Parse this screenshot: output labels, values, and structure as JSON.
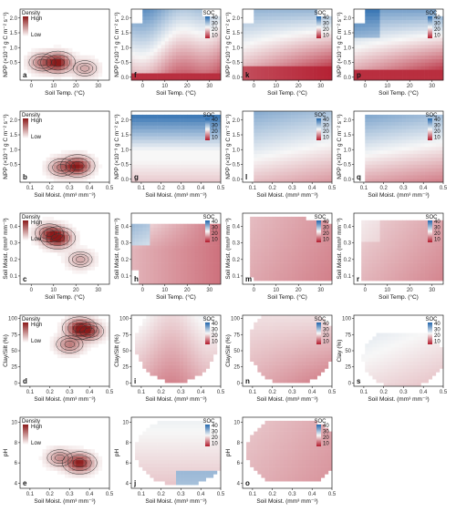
{
  "colors": {
    "density_high": "#8b1a1a",
    "soc_low": "#b2182b",
    "soc_mid": "#f7f7f7",
    "soc_high": "#2166ac",
    "contour": "#333333"
  },
  "legends": {
    "density": {
      "title": "Density",
      "high": "High",
      "low": "Low"
    },
    "soc": {
      "title": "SOC",
      "ticks": [
        "40",
        "30",
        "20",
        "10"
      ]
    }
  },
  "chart_data": [
    {
      "label": "a",
      "type": "heatmap",
      "kind": "density",
      "xlabel": "Soil Temp. (°C)",
      "ylabel": "NPP (×10⁻³ g C m⁻² s⁻¹)",
      "xticks": [
        "0",
        "10",
        "20",
        "30"
      ],
      "yticks": [
        "0.5",
        "1.0",
        "1.5",
        "2.0"
      ],
      "xlim": [
        -5,
        35
      ],
      "ylim": [
        -0.1,
        2.3
      ],
      "peaks": [
        {
          "x": 12,
          "y": 0.5,
          "w": 1.0
        },
        {
          "x": 5,
          "y": 0.5,
          "w": 0.5
        },
        {
          "x": 24,
          "y": 0.3,
          "w": 0.3
        }
      ]
    },
    {
      "label": "f",
      "type": "heatmap",
      "kind": "soc",
      "xlabel": "Soil Temp. (°C)",
      "ylabel": "NPP (×10⁻³ g C m⁻² s⁻¹)",
      "xticks": [
        "0",
        "10",
        "20",
        "30"
      ],
      "yticks": [
        "0.0",
        "0.5",
        "1.0",
        "1.5",
        "2.0"
      ],
      "xlim": [
        -5,
        35
      ],
      "ylim": [
        -0.1,
        2.3
      ],
      "legend": true
    },
    {
      "label": "k",
      "type": "heatmap",
      "kind": "soc",
      "xlabel": "Soil Temp. (°C)",
      "ylabel": "NPP (×10⁻³ g C m⁻² s⁻¹)",
      "xticks": [
        "0",
        "10",
        "20",
        "30"
      ],
      "yticks": [
        "0.0",
        "0.5",
        "1.0",
        "1.5",
        "2.0"
      ],
      "xlim": [
        -5,
        35
      ],
      "ylim": [
        -0.1,
        2.3
      ],
      "legend": true
    },
    {
      "label": "p",
      "type": "heatmap",
      "kind": "soc",
      "xlabel": "Soil Temp. (°C)",
      "ylabel": "NPP (×10⁻³ g C m⁻² s⁻¹)",
      "xticks": [
        "0",
        "10",
        "20",
        "30"
      ],
      "yticks": [
        "0.0",
        "0.5",
        "1.0",
        "1.5",
        "2.0"
      ],
      "xlim": [
        -5,
        35
      ],
      "ylim": [
        -0.1,
        2.3
      ],
      "legend": true
    },
    {
      "label": "b",
      "type": "heatmap",
      "kind": "density",
      "xlabel": "Soil Moist. (mm³ mm⁻³)",
      "ylabel": "NPP (×10⁻³ g C m⁻² s⁻¹)",
      "xticks": [
        "0.1",
        "0.2",
        "0.3",
        "0.4",
        "0.5"
      ],
      "yticks": [
        "0.5",
        "1.0",
        "1.5",
        "2.0"
      ],
      "xlim": [
        0.05,
        0.5
      ],
      "ylim": [
        -0.1,
        2.3
      ],
      "peaks": [
        {
          "x": 0.34,
          "y": 0.45,
          "w": 1.0
        },
        {
          "x": 0.26,
          "y": 0.4,
          "w": 0.5
        }
      ]
    },
    {
      "label": "g",
      "type": "heatmap",
      "kind": "soc",
      "xlabel": "Soil Moist. (mm³ mm⁻³)",
      "ylabel": "NPP (×10⁻³ g C m⁻² s⁻¹)",
      "xticks": [
        "0.1",
        "0.2",
        "0.3",
        "0.4",
        "0.5"
      ],
      "yticks": [
        "0.0",
        "0.5",
        "1.0",
        "1.5",
        "2.0"
      ],
      "xlim": [
        0.05,
        0.5
      ],
      "ylim": [
        -0.1,
        2.3
      ],
      "legend": true
    },
    {
      "label": "l",
      "type": "heatmap",
      "kind": "soc",
      "xlabel": "Soil Moist. (mm³ mm⁻³)",
      "ylabel": "NPP (×10⁻³ g C m⁻² s⁻¹)",
      "xticks": [
        "0.1",
        "0.2",
        "0.3",
        "0.4",
        "0.5"
      ],
      "yticks": [
        "0.0",
        "0.5",
        "1.0",
        "1.5",
        "2.0"
      ],
      "xlim": [
        0.05,
        0.5
      ],
      "ylim": [
        -0.1,
        2.3
      ],
      "legend": true
    },
    {
      "label": "q",
      "type": "heatmap",
      "kind": "soc",
      "xlabel": "Soil Moist. (mm³ mm⁻³)",
      "ylabel": "NPP (×10⁻³ g C m⁻² s⁻¹)",
      "xticks": [
        "0.1",
        "0.2",
        "0.3",
        "0.4",
        "0.5"
      ],
      "yticks": [
        "0.0",
        "0.5",
        "1.0",
        "1.5",
        "2.0"
      ],
      "xlim": [
        0.05,
        0.5
      ],
      "ylim": [
        -0.1,
        2.3
      ],
      "legend": true
    },
    {
      "label": "c",
      "type": "heatmap",
      "kind": "density",
      "xlabel": "Soil Temp. (°C)",
      "ylabel": "Soil Moist. (mm³ mm⁻³)",
      "xticks": [
        "0",
        "10",
        "20",
        "30"
      ],
      "yticks": [
        "0.1",
        "0.2",
        "0.3",
        "0.4"
      ],
      "xlim": [
        -5,
        35
      ],
      "ylim": [
        0.05,
        0.48
      ],
      "peaks": [
        {
          "x": 12,
          "y": 0.33,
          "w": 1.0
        },
        {
          "x": 8,
          "y": 0.36,
          "w": 0.6
        },
        {
          "x": 22,
          "y": 0.2,
          "w": 0.3
        }
      ]
    },
    {
      "label": "h",
      "type": "heatmap",
      "kind": "soc",
      "xlabel": "Soil Temp. (°C)",
      "ylabel": "Soil Moist. (mm³ mm⁻³)",
      "xticks": [
        "0",
        "10",
        "20",
        "30"
      ],
      "yticks": [
        "0.1",
        "0.2",
        "0.3",
        "0.4"
      ],
      "xlim": [
        -5,
        35
      ],
      "ylim": [
        0.05,
        0.48
      ],
      "legend": true
    },
    {
      "label": "m",
      "type": "heatmap",
      "kind": "soc",
      "xlabel": "Soil Temp. (°C)",
      "ylabel": "Soil Moist. (mm³ mm⁻³)",
      "xticks": [
        "0",
        "10",
        "20",
        "30"
      ],
      "yticks": [
        "0.1",
        "0.2",
        "0.3",
        "0.4"
      ],
      "xlim": [
        -5,
        35
      ],
      "ylim": [
        0.05,
        0.48
      ],
      "legend": true
    },
    {
      "label": "r",
      "type": "heatmap",
      "kind": "soc",
      "xlabel": "Soil Temp. (°C)",
      "ylabel": "Soil Moist. (mm³ mm⁻³)",
      "xticks": [
        "0",
        "10",
        "20",
        "30"
      ],
      "yticks": [
        "0.1",
        "0.2",
        "0.3",
        "0.4"
      ],
      "xlim": [
        -5,
        35
      ],
      "ylim": [
        0.05,
        0.48
      ],
      "legend": true
    },
    {
      "label": "d",
      "type": "heatmap",
      "kind": "density",
      "xlabel": "Soil Moist. (mm³ mm⁻³)",
      "ylabel": "Clay/Silt (%)",
      "xticks": [
        "0.1",
        "0.2",
        "0.3",
        "0.4",
        "0.5"
      ],
      "yticks": [
        "0",
        "25",
        "50",
        "75",
        "100"
      ],
      "xlim": [
        0.05,
        0.5
      ],
      "ylim": [
        -5,
        105
      ],
      "peaks": [
        {
          "x": 0.35,
          "y": 85,
          "w": 1.0
        },
        {
          "x": 0.3,
          "y": 60,
          "w": 0.5
        },
        {
          "x": 0.4,
          "y": 80,
          "w": 0.6
        }
      ]
    },
    {
      "label": "i",
      "type": "heatmap",
      "kind": "soc",
      "xlabel": "Soil Moist. (mm³ mm⁻³)",
      "ylabel": "Clay/Silt (%)",
      "xticks": [
        "0.1",
        "0.2",
        "0.3",
        "0.4",
        "0.5"
      ],
      "yticks": [
        "0",
        "25",
        "50",
        "75",
        "100"
      ],
      "xlim": [
        0.05,
        0.5
      ],
      "ylim": [
        -5,
        105
      ],
      "legend": true
    },
    {
      "label": "n",
      "type": "heatmap",
      "kind": "soc",
      "xlabel": "Soil Moist. (mm³ mm⁻³)",
      "ylabel": "Clay/Silt (%)",
      "xticks": [
        "0.1",
        "0.2",
        "0.3",
        "0.4",
        "0.5"
      ],
      "yticks": [
        "0",
        "25",
        "50",
        "75",
        "100"
      ],
      "xlim": [
        0.05,
        0.5
      ],
      "ylim": [
        -5,
        105
      ],
      "legend": true
    },
    {
      "label": "s",
      "type": "heatmap",
      "kind": "soc",
      "xlabel": "Soil Moist. (mm³ mm⁻³)",
      "ylabel": "Clay (%)",
      "xticks": [
        "0.1",
        "0.2",
        "0.3",
        "0.4",
        "0.5"
      ],
      "yticks": [
        "0",
        "25",
        "50",
        "75",
        "100"
      ],
      "xlim": [
        0.05,
        0.5
      ],
      "ylim": [
        -5,
        105
      ],
      "legend": true
    },
    {
      "label": "e",
      "type": "heatmap",
      "kind": "density",
      "xlabel": "Soil Moist. (mm³ mm⁻³)",
      "ylabel": "pH",
      "xticks": [
        "0.1",
        "0.2",
        "0.3",
        "0.4",
        "0.5"
      ],
      "yticks": [
        "4",
        "6",
        "8",
        "10"
      ],
      "xlim": [
        0.05,
        0.5
      ],
      "ylim": [
        3.5,
        10.5
      ],
      "peaks": [
        {
          "x": 0.35,
          "y": 6.0,
          "w": 1.0
        },
        {
          "x": 0.25,
          "y": 6.5,
          "w": 0.4
        }
      ]
    },
    {
      "label": "j",
      "type": "heatmap",
      "kind": "soc",
      "xlabel": "Soil Moist. (mm³ mm⁻³)",
      "ylabel": "pH",
      "xticks": [
        "0.1",
        "0.2",
        "0.3",
        "0.4",
        "0.5"
      ],
      "yticks": [
        "4",
        "6",
        "8",
        "10"
      ],
      "xlim": [
        0.05,
        0.5
      ],
      "ylim": [
        3.5,
        10.5
      ],
      "legend": true
    },
    {
      "label": "o",
      "type": "heatmap",
      "kind": "soc",
      "xlabel": "Soil Moist. (mm³ mm⁻³)",
      "ylabel": "pH",
      "xticks": [
        "0.1",
        "0.2",
        "0.3",
        "0.4",
        "0.5"
      ],
      "yticks": [
        "4",
        "6",
        "8",
        "10"
      ],
      "xlim": [
        0.05,
        0.5
      ],
      "ylim": [
        3.5,
        10.5
      ],
      "legend": true
    }
  ]
}
